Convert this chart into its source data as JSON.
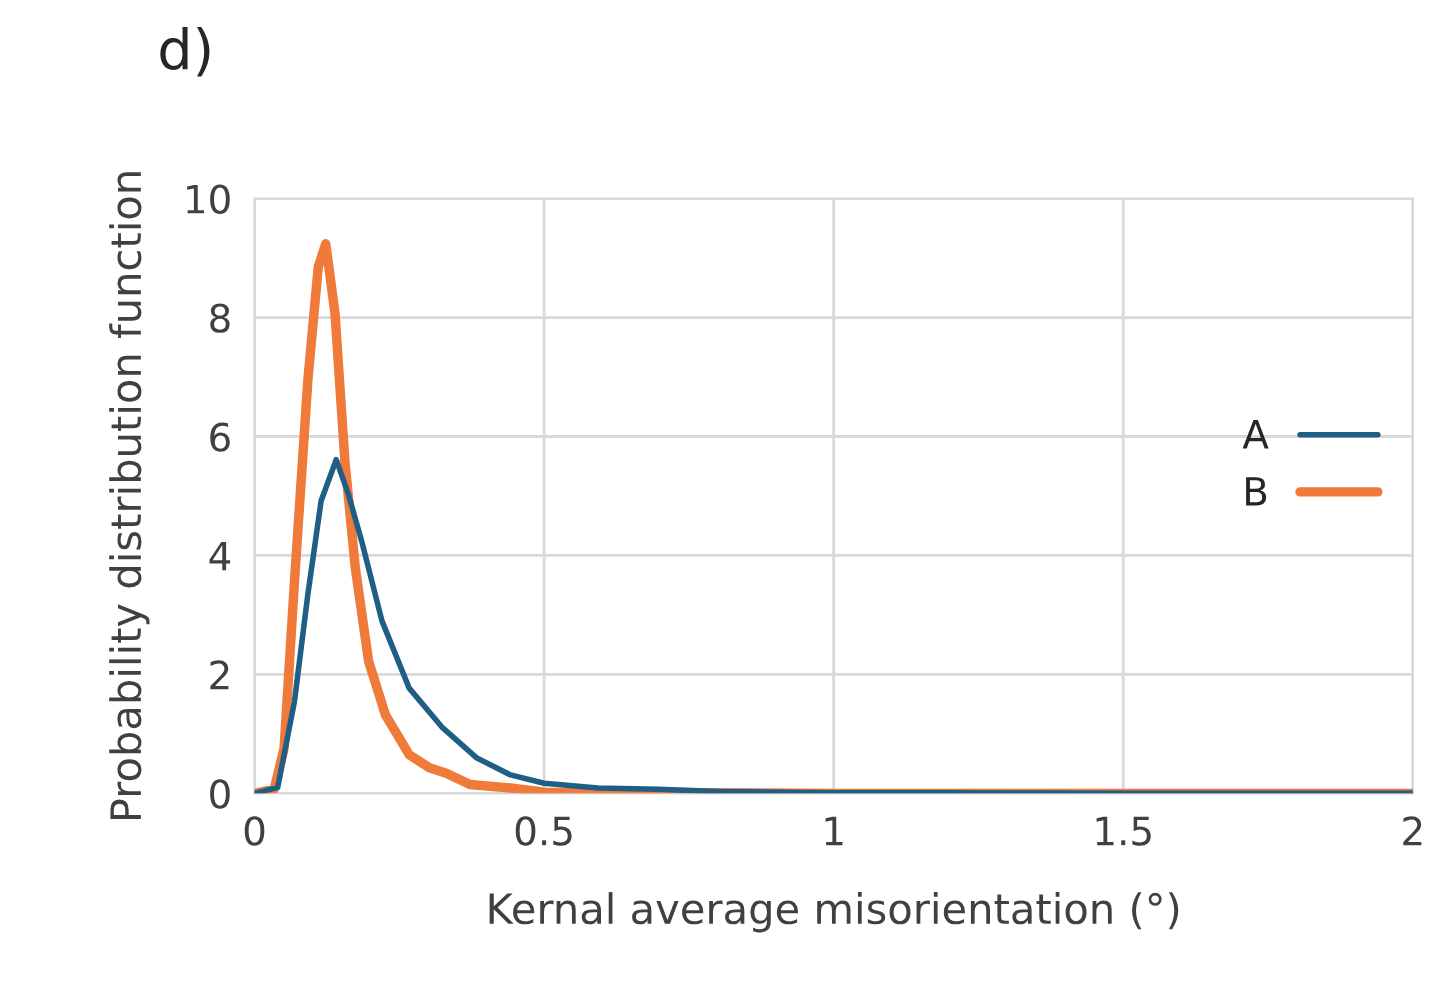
{
  "chart_data": {
    "type": "line",
    "title": "d)",
    "xlabel": "Kernal average misorientation (°)",
    "ylabel": "Probability distribution function",
    "xlim": [
      0,
      2
    ],
    "xticks": [
      0,
      0.5,
      1,
      1.5,
      2
    ],
    "ylim": [
      0,
      10
    ],
    "yticks": [
      0,
      2,
      4,
      6,
      8,
      10
    ],
    "grid": true,
    "legend": "right",
    "marker": "none",
    "line_style": "solid",
    "series": [
      {
        "name": "A",
        "color": "#1f5f85",
        "x": [
          0,
          0.04,
          0.069,
          0.092,
          0.115,
          0.141,
          0.162,
          0.185,
          0.22,
          0.267,
          0.325,
          0.383,
          0.442,
          0.5,
          0.593,
          0.698,
          0.8,
          1.0,
          1.2,
          1.5,
          2.0
        ],
        "values": [
          0,
          0.1,
          1.55,
          3.34,
          4.92,
          5.61,
          5.03,
          4.24,
          2.9,
          1.77,
          1.1,
          0.6,
          0.31,
          0.17,
          0.09,
          0.07,
          0.03,
          0.01,
          0.01,
          0,
          0
        ]
      },
      {
        "name": "B",
        "color": "#f07a3a",
        "x": [
          0,
          0.034,
          0.051,
          0.069,
          0.092,
          0.11,
          0.123,
          0.139,
          0.156,
          0.174,
          0.197,
          0.226,
          0.267,
          0.302,
          0.331,
          0.372,
          0.442,
          0.5,
          0.8,
          1.0,
          2.0
        ],
        "values": [
          0,
          0.07,
          0.76,
          3.57,
          6.94,
          8.85,
          9.24,
          8.06,
          5.59,
          3.79,
          2.22,
          1.32,
          0.65,
          0.43,
          0.34,
          0.15,
          0.09,
          0.02,
          0.01,
          0,
          0
        ]
      }
    ]
  }
}
